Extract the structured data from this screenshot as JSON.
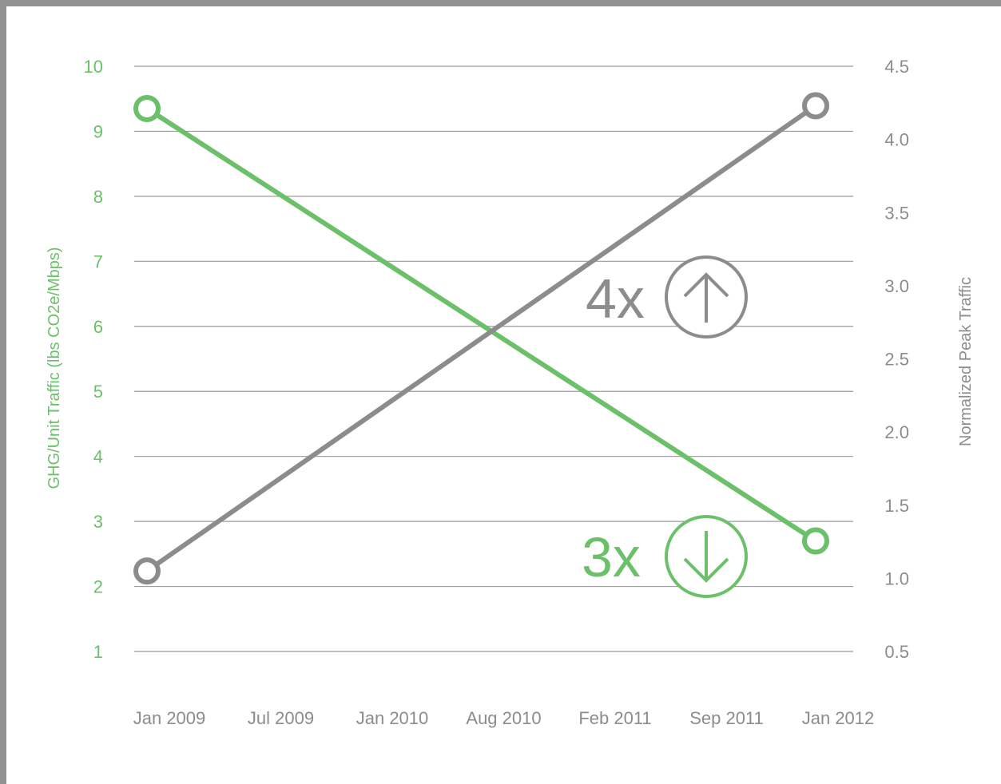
{
  "chart_data": {
    "type": "line",
    "x": [
      "Jan 2009",
      "Jul 2009",
      "Jan 2010",
      "Aug 2010",
      "Feb 2011",
      "Sep 2011",
      "Jan 2012"
    ],
    "series": [
      {
        "axis": "left",
        "color": "#6cc06a",
        "points": [
          {
            "x": "Jan 2009",
            "y": 9.35
          },
          {
            "x": "Jan 2012",
            "y": 2.7
          }
        ]
      },
      {
        "axis": "right",
        "color": "#8c8c8c",
        "points": [
          {
            "x": "Jan 2009",
            "y": 1.05
          },
          {
            "x": "Jan 2012",
            "y": 4.23
          }
        ]
      }
    ],
    "ylabel": "GHG/Unit Traffic (lbs CO2e/Mbps)",
    "y2label": "Normalized Peak Traffic",
    "yticks": [
      "10",
      "9",
      "8",
      "7",
      "6",
      "5",
      "4",
      "3",
      "2",
      "1"
    ],
    "y2ticks": [
      "4.5",
      "4.0",
      "3.5",
      "3.0",
      "2.5",
      "2.0",
      "1.5",
      "1.0",
      "0.5"
    ],
    "ylim": [
      1,
      10
    ],
    "y2lim": [
      0.5,
      4.5
    ],
    "grid": true,
    "annotations": [
      {
        "text": "4x",
        "icon": "arrow-up-circle-icon",
        "color": "#8c8c8c"
      },
      {
        "text": "3x",
        "icon": "arrow-down-circle-icon",
        "color": "#6cc06a"
      }
    ]
  }
}
